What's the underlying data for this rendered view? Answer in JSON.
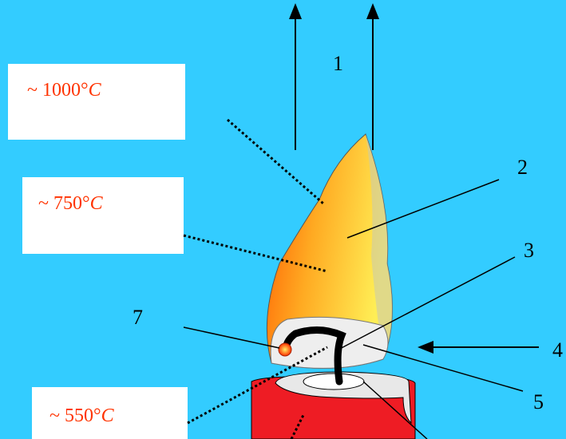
{
  "diagram": {
    "temperatures": [
      {
        "text": "~ 1000°",
        "unit": "C"
      },
      {
        "text": "~ 750°",
        "unit": "C"
      },
      {
        "text": "~ 550°",
        "unit": "C"
      }
    ],
    "labels": [
      "1",
      "2",
      "3",
      "4",
      "5",
      "7"
    ]
  }
}
